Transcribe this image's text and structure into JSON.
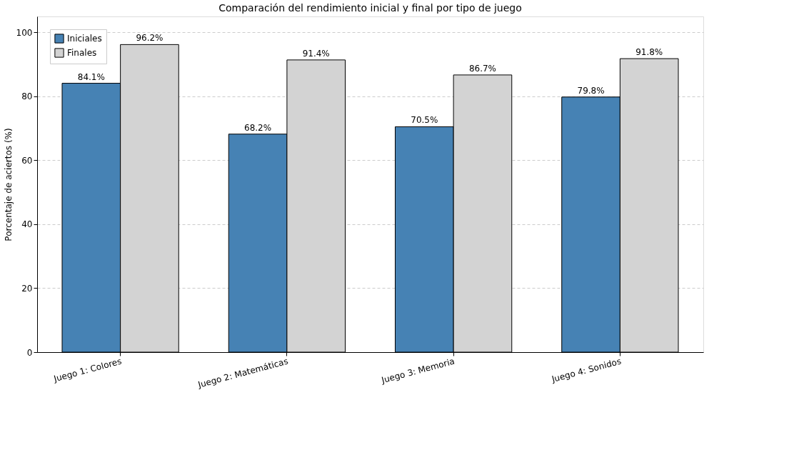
{
  "chart_data": {
    "type": "bar",
    "title": "Comparación del rendimiento inicial y final por tipo de juego",
    "ylabel": "Porcentaje de aciertos (%)",
    "categories": [
      "Juego 1: Colores",
      "Juego 2: Matemáticas",
      "Juego 3: Memoria",
      "Juego 4: Sonidos"
    ],
    "series": [
      {
        "name": "Iniciales",
        "color": "#4682b4",
        "values": [
          84.1,
          68.2,
          70.5,
          79.8
        ],
        "value_labels": [
          "84.1%",
          "68.2%",
          "70.5%",
          "79.8%"
        ]
      },
      {
        "name": "Finales",
        "color": "#d3d3d3",
        "values": [
          96.2,
          91.4,
          86.7,
          91.8
        ],
        "value_labels": [
          "96.2%",
          "91.4%",
          "86.7%",
          "91.8%"
        ]
      }
    ],
    "ylim": [
      0,
      105
    ],
    "yticks": [
      0,
      20,
      40,
      60,
      80,
      100
    ],
    "grid": "y",
    "legend": "top left"
  }
}
